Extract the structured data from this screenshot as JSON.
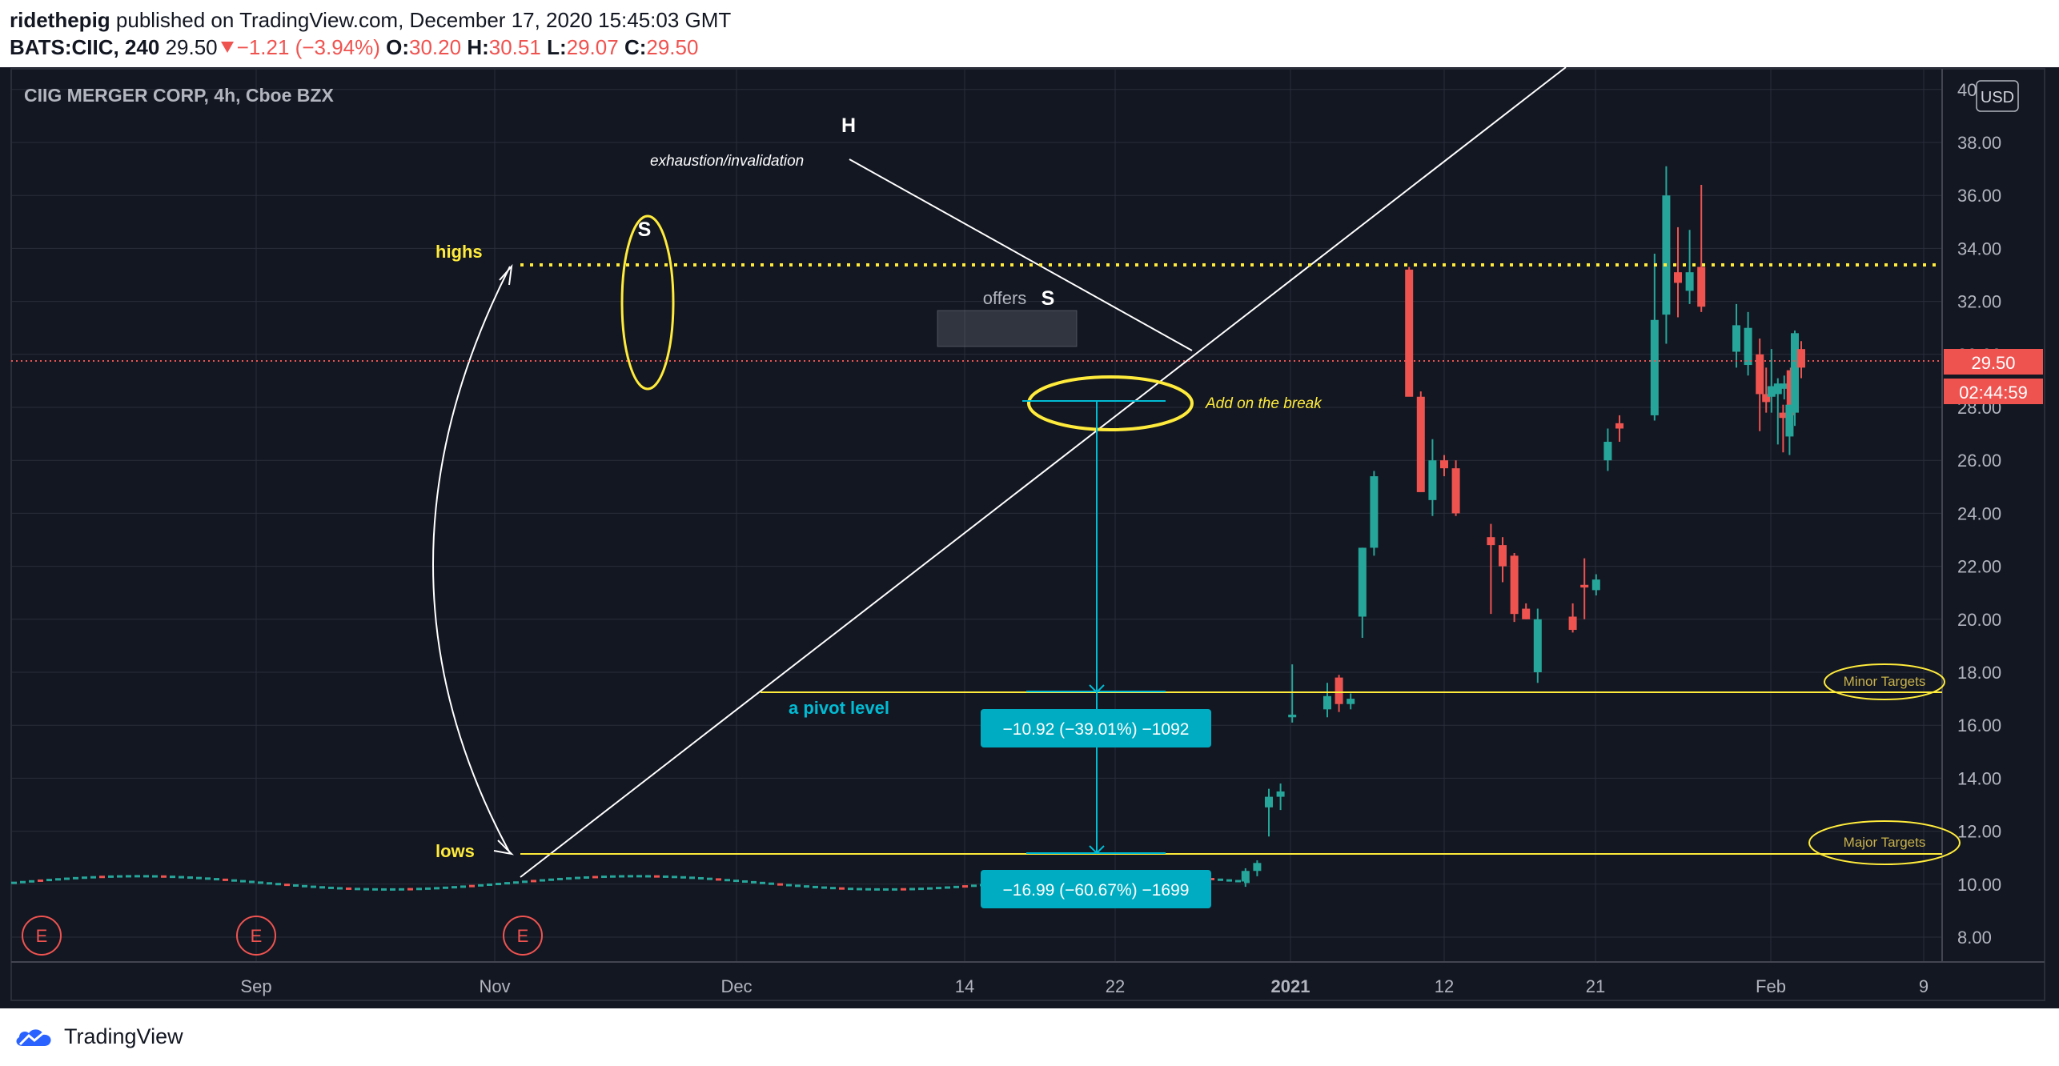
{
  "header": {
    "author": "ridethepig",
    "published_text": " published on TradingView.com, December 17, 2020 15:45:03 GMT",
    "symbol_interval": "BATS:CIIC, 240",
    "last": "29.50",
    "change": "−1.21 (−3.94%)",
    "o_label": "O:",
    "o_value": "30.20",
    "h_label": "H:",
    "h_value": "30.51",
    "l_label": "L:",
    "l_value": "29.07",
    "c_label": "C:",
    "c_value": "29.50"
  },
  "legend_title": "CIIG MERGER CORP, 4h, Cboe BZX",
  "currency_button": "USD",
  "price_label": "29.50",
  "countdown_label": "02:44:59",
  "footer_brand": "TradingView",
  "colors": {
    "background": "#131722",
    "up": "#26a69a",
    "down": "#ef5350",
    "annotation_yellow": "#ffeb3b",
    "annotation_cyan": "#00bcd4",
    "grid": "#2a2e39",
    "axis_text": "#b2b5be"
  },
  "earnings_marker": "E",
  "annotations": {
    "head": "H",
    "shoulder_left": "S",
    "shoulder_right": "S",
    "exhaustion": "exhaustion/invalidation",
    "highs": "highs",
    "lows": "lows",
    "offers": "offers",
    "add_on_break": "Add on the break",
    "pivot": "a pivot level",
    "minor_targets": "Minor Targets",
    "major_targets": "Major Targets",
    "measure_1": "−10.92 (−39.01%) −1092",
    "measure_2": "−16.99 (−60.67%) −1699"
  },
  "chart_data": {
    "type": "candlestick",
    "ylim": [
      7,
      40.5
    ],
    "y_ticks": [
      8,
      10,
      12,
      14,
      16,
      18,
      20,
      22,
      24,
      26,
      28,
      30,
      32,
      34,
      36,
      38,
      40
    ],
    "x_ticks": [
      "Sep",
      "Nov",
      "Dec",
      "14",
      "22",
      "2021",
      "12",
      "21",
      "Feb",
      "9"
    ],
    "x_ticks_bold": [
      "2021"
    ],
    "earnings_dates": [
      "2020-08-27",
      "2020-09-30",
      "2020-11-02"
    ],
    "flat_segment": {
      "from": "2020-07-14",
      "to": "2020-11-02",
      "value_range": [
        9.8,
        10.3
      ]
    },
    "candles": [
      {
        "d": "2020-11-02",
        "o": 10.1,
        "h": 10.6,
        "l": 9.9,
        "c": 10.5
      },
      {
        "d": "2020-11-03",
        "o": 10.5,
        "h": 10.9,
        "l": 10.3,
        "c": 10.8
      },
      {
        "d": "2020-11-04",
        "o": 12.9,
        "h": 13.6,
        "l": 11.8,
        "c": 13.3
      },
      {
        "d": "2020-11-05",
        "o": 13.3,
        "h": 13.8,
        "l": 12.8,
        "c": 13.5
      },
      {
        "d": "2020-11-06",
        "o": 16.3,
        "h": 18.3,
        "l": 16.1,
        "c": 16.4
      },
      {
        "d": "2020-11-09",
        "o": 16.6,
        "h": 17.6,
        "l": 16.3,
        "c": 17.1
      },
      {
        "d": "2020-11-10",
        "o": 17.8,
        "h": 17.9,
        "l": 16.5,
        "c": 16.8
      },
      {
        "d": "2020-11-11",
        "o": 16.8,
        "h": 17.2,
        "l": 16.6,
        "c": 17.0
      },
      {
        "d": "2020-11-12",
        "o": 20.1,
        "h": 22.7,
        "l": 19.3,
        "c": 22.7
      },
      {
        "d": "2020-11-13",
        "o": 22.7,
        "h": 25.6,
        "l": 22.4,
        "c": 25.4
      },
      {
        "d": "2020-11-16",
        "o": 33.2,
        "h": 33.3,
        "l": 28.5,
        "c": 28.4
      },
      {
        "d": "2020-11-17",
        "o": 28.4,
        "h": 28.6,
        "l": 24.9,
        "c": 24.8
      },
      {
        "d": "2020-11-18",
        "o": 24.5,
        "h": 26.8,
        "l": 23.9,
        "c": 26.0
      },
      {
        "d": "2020-11-19",
        "o": 26.0,
        "h": 26.2,
        "l": 25.4,
        "c": 25.7
      },
      {
        "d": "2020-11-20",
        "o": 25.7,
        "h": 26.0,
        "l": 23.9,
        "c": 24.0
      },
      {
        "d": "2020-11-23",
        "o": 23.1,
        "h": 23.6,
        "l": 20.2,
        "c": 22.8
      },
      {
        "d": "2020-11-24",
        "o": 22.8,
        "h": 23.1,
        "l": 21.4,
        "c": 22.0
      },
      {
        "d": "2020-11-25",
        "o": 22.4,
        "h": 22.5,
        "l": 19.9,
        "c": 20.2
      },
      {
        "d": "2020-11-26",
        "o": 20.4,
        "h": 20.6,
        "l": 20.0,
        "c": 20.0
      },
      {
        "d": "2020-11-27",
        "o": 18.0,
        "h": 20.4,
        "l": 17.6,
        "c": 20.0
      },
      {
        "d": "2020-11-30",
        "o": 20.1,
        "h": 20.6,
        "l": 19.5,
        "c": 19.6
      },
      {
        "d": "2020-12-01",
        "o": 21.3,
        "h": 22.3,
        "l": 20.0,
        "c": 21.2
      },
      {
        "d": "2020-12-02",
        "o": 21.1,
        "h": 21.7,
        "l": 20.9,
        "c": 21.5
      },
      {
        "d": "2020-12-03",
        "o": 26.0,
        "h": 27.2,
        "l": 25.6,
        "c": 26.7
      },
      {
        "d": "2020-12-04",
        "o": 27.4,
        "h": 27.7,
        "l": 26.7,
        "c": 27.2
      },
      {
        "d": "2020-12-07",
        "o": 27.7,
        "h": 33.8,
        "l": 27.5,
        "c": 31.3
      },
      {
        "d": "2020-12-08",
        "o": 31.5,
        "h": 37.1,
        "l": 30.4,
        "c": 36.0
      },
      {
        "d": "2020-12-09",
        "o": 33.1,
        "h": 34.8,
        "l": 31.4,
        "c": 32.7
      },
      {
        "d": "2020-12-10",
        "o": 32.4,
        "h": 34.7,
        "l": 31.9,
        "c": 33.1
      },
      {
        "d": "2020-12-11",
        "o": 33.3,
        "h": 36.4,
        "l": 31.6,
        "c": 31.8
      },
      {
        "d": "2020-12-14",
        "o": 30.1,
        "h": 31.9,
        "l": 29.5,
        "c": 31.1
      },
      {
        "d": "2020-12-15",
        "o": 29.6,
        "h": 31.6,
        "l": 29.2,
        "c": 31.0
      },
      {
        "d": "2020-12-16",
        "o": 30.0,
        "h": 30.6,
        "l": 27.1,
        "c": 28.5
      },
      {
        "d": "2020-12-16",
        "o": 28.5,
        "h": 29.5,
        "l": 27.8,
        "c": 28.2
      },
      {
        "d": "2020-12-17",
        "o": 28.4,
        "h": 30.2,
        "l": 27.8,
        "c": 28.8
      },
      {
        "d": "2020-12-17",
        "o": 28.5,
        "h": 29.1,
        "l": 26.6,
        "c": 28.9
      },
      {
        "d": "2020-12-17",
        "o": 28.7,
        "h": 29.2,
        "l": 28.3,
        "c": 28.9
      },
      {
        "d": "2020-12-17",
        "o": 29.4,
        "h": 29.5,
        "l": 27.6,
        "c": 27.7
      },
      {
        "d": "2020-12-18",
        "o": 27.8,
        "h": 28.1,
        "l": 26.3,
        "c": 27.6
      },
      {
        "d": "2020-12-18",
        "o": 26.9,
        "h": 28.1,
        "l": 26.2,
        "c": 28.1
      },
      {
        "d": "2020-12-19",
        "o": 27.8,
        "h": 30.9,
        "l": 27.3,
        "c": 30.8
      },
      {
        "d": "2020-12-19",
        "o": 30.2,
        "h": 30.5,
        "l": 29.1,
        "c": 29.5
      }
    ],
    "last_price": 29.5,
    "levels": {
      "highs": 33.2,
      "minor_target": 17.08,
      "major_target": 11.0,
      "break": 28.0
    }
  }
}
